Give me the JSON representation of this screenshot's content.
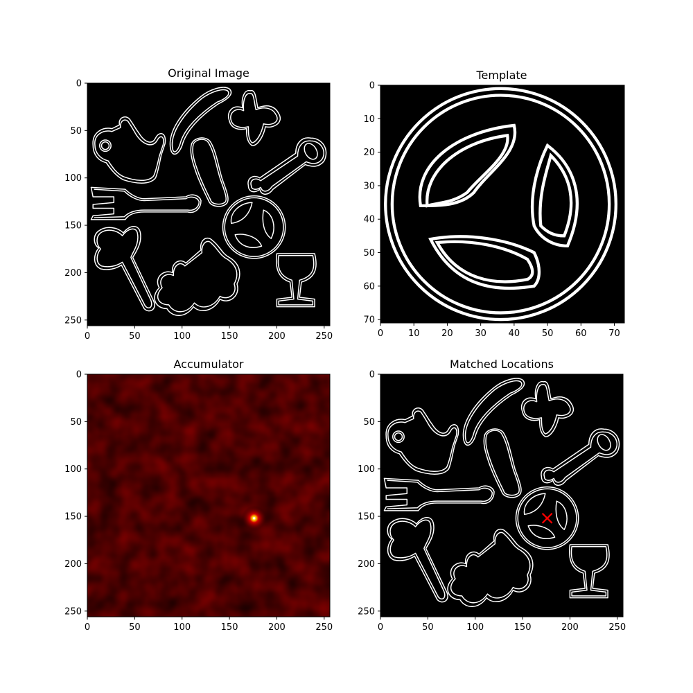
{
  "chart_data": [
    {
      "type": "image",
      "title": "Original Image",
      "xlim": [
        0,
        256
      ],
      "ylim": [
        256,
        0
      ],
      "xticks": [
        0,
        50,
        100,
        150,
        200,
        250
      ],
      "yticks": [
        0,
        50,
        100,
        150,
        200,
        250
      ],
      "colormap": "gray",
      "background": "#000000",
      "content": "edge map of silhouette shapes"
    },
    {
      "type": "image",
      "title": "Template",
      "xlim": [
        0,
        73
      ],
      "ylim": [
        71,
        0
      ],
      "xticks": [
        0,
        10,
        20,
        30,
        40,
        50,
        60,
        70
      ],
      "yticks": [
        0,
        10,
        20,
        30,
        40,
        50,
        60,
        70
      ],
      "colormap": "gray",
      "background": "#000000",
      "content": "circle with three lobes edge map"
    },
    {
      "type": "heatmap",
      "title": "Accumulator",
      "xlim": [
        0,
        256
      ],
      "ylim": [
        256,
        0
      ],
      "xticks": [
        0,
        50,
        100,
        150,
        200,
        250
      ],
      "yticks": [
        0,
        50,
        100,
        150,
        200,
        250
      ],
      "colormap": "hot",
      "peak": {
        "x": 176,
        "y": 152
      }
    },
    {
      "type": "image",
      "title": "Matched Locations",
      "xlim": [
        0,
        256
      ],
      "ylim": [
        256,
        0
      ],
      "xticks": [
        0,
        50,
        100,
        150,
        200,
        250
      ],
      "yticks": [
        0,
        50,
        100,
        150,
        200,
        250
      ],
      "colormap": "gray",
      "background": "#000000",
      "marker": {
        "x": 176,
        "y": 152,
        "symbol": "x",
        "color": "#ff0000"
      }
    }
  ]
}
